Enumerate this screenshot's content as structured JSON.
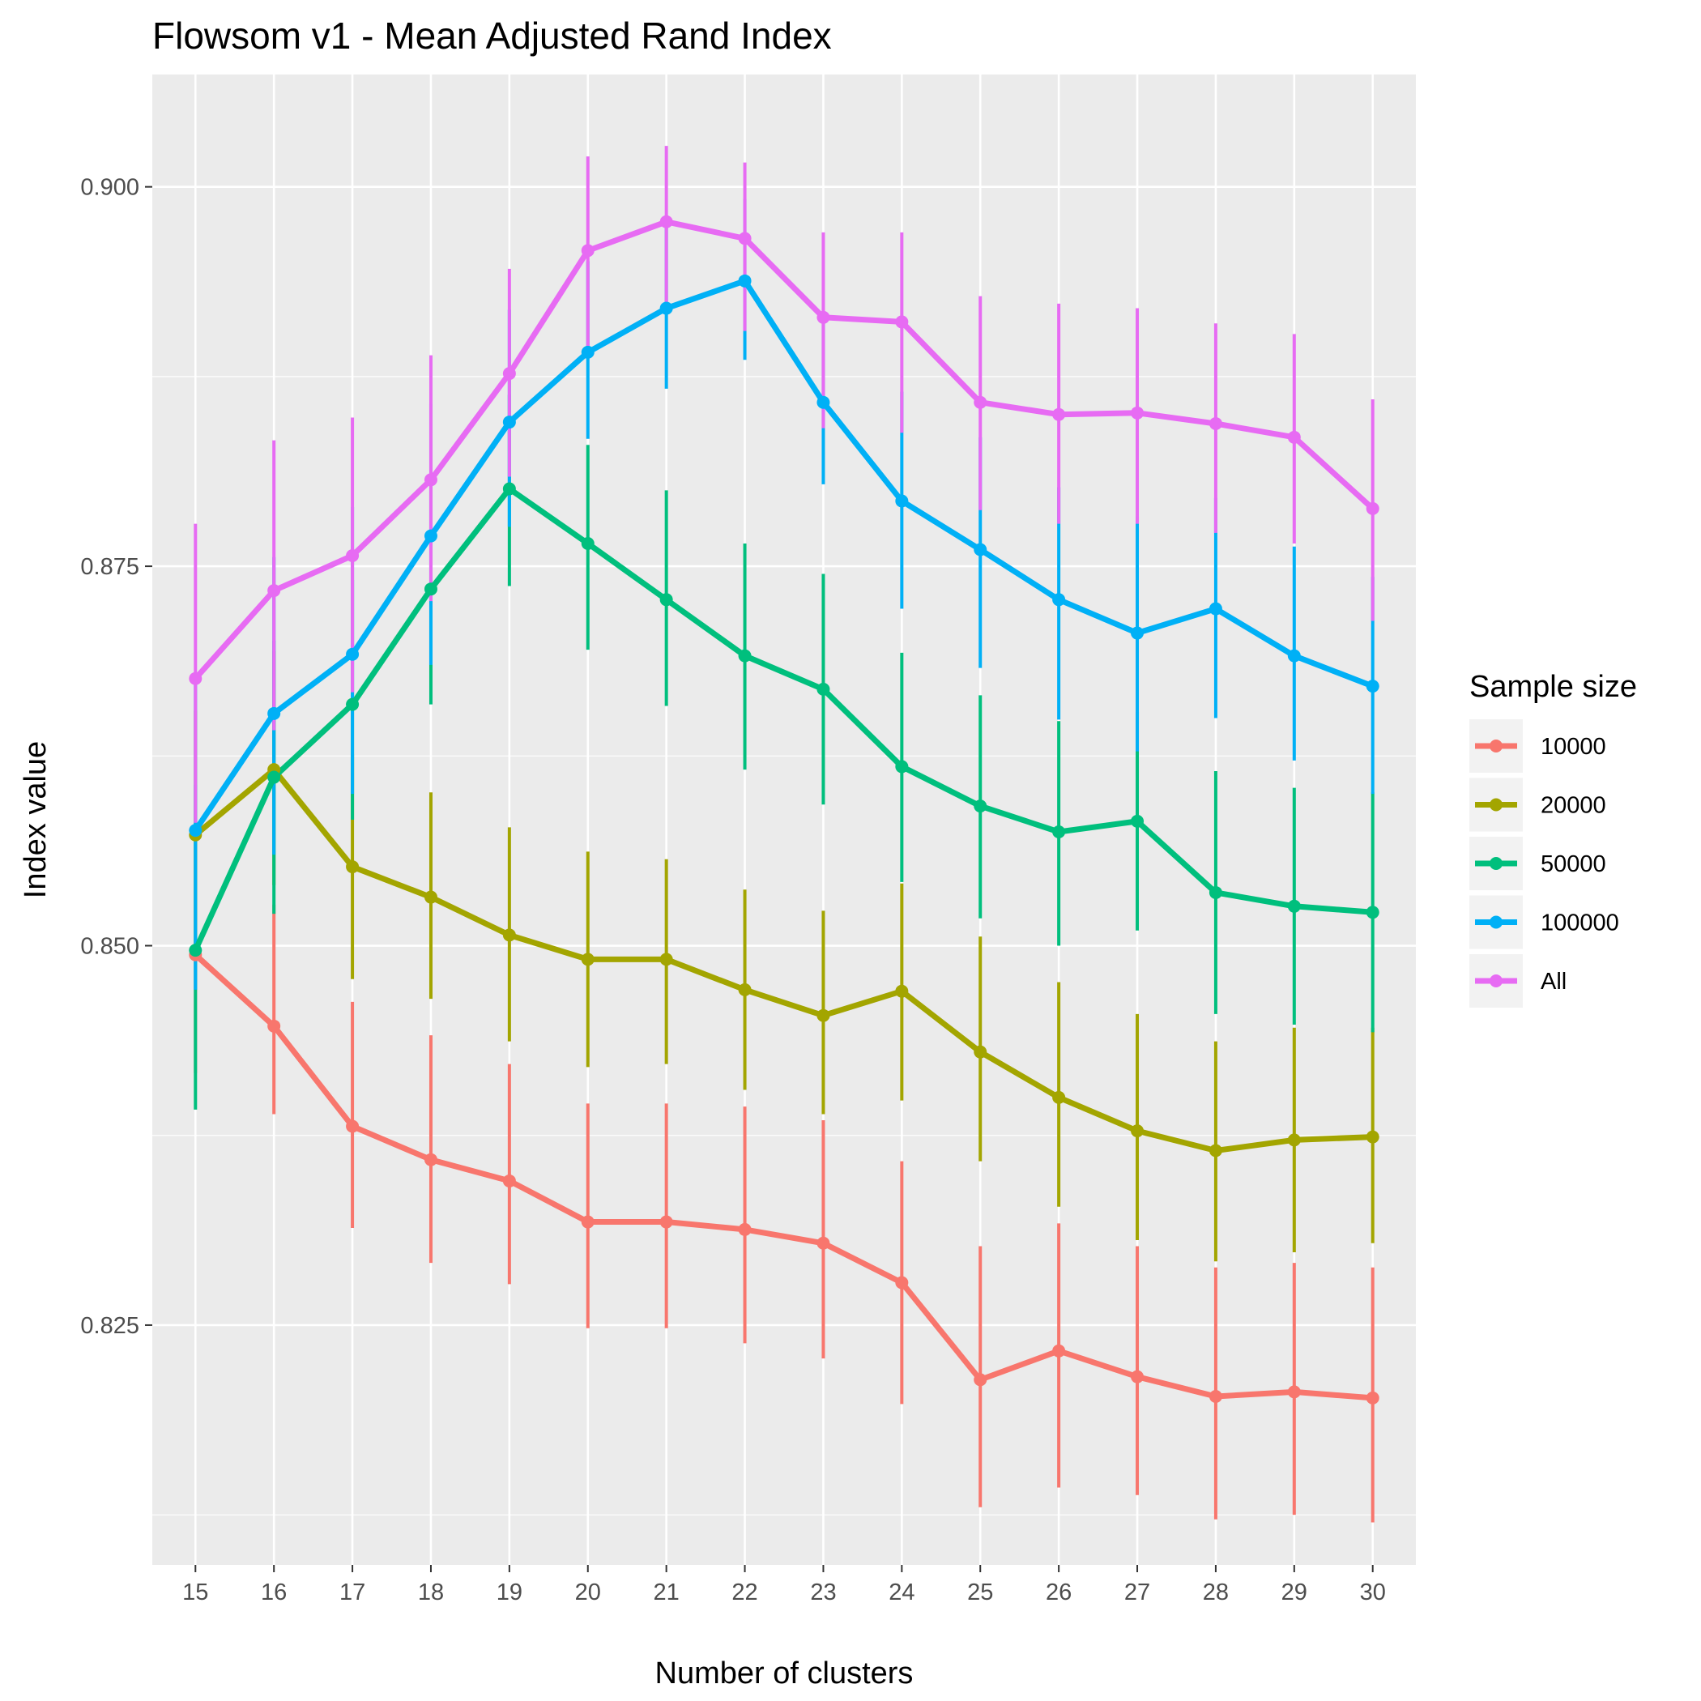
{
  "chart_data": {
    "type": "line",
    "title": "Flowsom v1 - Mean Adjusted Rand Index",
    "xlabel": "Number of clusters",
    "ylabel": "Index value",
    "x": [
      15,
      16,
      17,
      18,
      19,
      20,
      21,
      22,
      23,
      24,
      25,
      26,
      27,
      28,
      29,
      30
    ],
    "xlim": [
      14.45,
      30.55
    ],
    "ylim": [
      0.8092,
      0.9074
    ],
    "y_ticks": [
      "0.825",
      "0.850",
      "0.875",
      "0.900"
    ],
    "grid": true,
    "legend": {
      "title": "Sample size",
      "position": "right"
    },
    "error_bars": true,
    "series": [
      {
        "name": "10000",
        "color": "#F8766D",
        "values": [
          0.8494,
          0.8447,
          0.8381,
          0.8359,
          0.8345,
          0.8318,
          0.8318,
          0.8313,
          0.8304,
          0.8278,
          0.8214,
          0.8233,
          0.8216,
          0.8203,
          0.8206,
          0.8202
        ],
        "lower": [
          0.8416,
          0.8389,
          0.8314,
          0.8291,
          0.8277,
          0.8248,
          0.8248,
          0.8238,
          0.8228,
          0.8198,
          0.813,
          0.8143,
          0.8138,
          0.8122,
          0.8125,
          0.812
        ],
        "upper": [
          0.8572,
          0.8527,
          0.8463,
          0.8441,
          0.8422,
          0.8396,
          0.8396,
          0.8394,
          0.8385,
          0.8358,
          0.8302,
          0.8317,
          0.8302,
          0.8288,
          0.8291,
          0.8288
        ]
      },
      {
        "name": "20000",
        "color": "#A3A500",
        "values": [
          0.8573,
          0.8616,
          0.8552,
          0.8532,
          0.8507,
          0.8491,
          0.8491,
          0.8471,
          0.8454,
          0.847,
          0.843,
          0.84,
          0.8378,
          0.8365,
          0.8372,
          0.8374
        ],
        "lower": [
          0.8493,
          0.854,
          0.8478,
          0.8465,
          0.8437,
          0.842,
          0.8422,
          0.8405,
          0.8389,
          0.8398,
          0.8358,
          0.8328,
          0.8306,
          0.8292,
          0.8298,
          0.8304
        ],
        "upper": [
          0.8655,
          0.8694,
          0.8626,
          0.8601,
          0.8578,
          0.8562,
          0.8557,
          0.8537,
          0.8523,
          0.8541,
          0.8506,
          0.8476,
          0.8455,
          0.8437,
          0.8446,
          0.8446
        ]
      },
      {
        "name": "50000",
        "color": "#00BF7D",
        "values": [
          0.8497,
          0.8611,
          0.8659,
          0.8735,
          0.8801,
          0.8765,
          0.8728,
          0.8691,
          0.8669,
          0.8618,
          0.8592,
          0.8575,
          0.8582,
          0.8535,
          0.8526,
          0.8522
        ],
        "lower": [
          0.8392,
          0.8521,
          0.8583,
          0.8659,
          0.8737,
          0.8695,
          0.8658,
          0.8616,
          0.8593,
          0.8542,
          0.8518,
          0.85,
          0.851,
          0.8455,
          0.8448,
          0.8443
        ],
        "upper": [
          0.8606,
          0.8701,
          0.8741,
          0.8811,
          0.8863,
          0.883,
          0.88,
          0.8765,
          0.8745,
          0.8693,
          0.8665,
          0.8648,
          0.8654,
          0.8615,
          0.8604,
          0.8601
        ]
      },
      {
        "name": "100000",
        "color": "#00B0F6",
        "values": [
          0.8576,
          0.8653,
          0.8692,
          0.877,
          0.8845,
          0.8891,
          0.892,
          0.8938,
          0.8858,
          0.8793,
          0.8761,
          0.8728,
          0.8706,
          0.8722,
          0.8691,
          0.8671
        ],
        "lower": [
          0.8471,
          0.856,
          0.86,
          0.8685,
          0.8776,
          0.8834,
          0.8867,
          0.8886,
          0.8804,
          0.8722,
          0.8683,
          0.8649,
          0.8628,
          0.865,
          0.8622,
          0.86
        ],
        "upper": [
          0.868,
          0.8756,
          0.8789,
          0.8857,
          0.8919,
          0.8951,
          0.8976,
          0.8992,
          0.8911,
          0.8865,
          0.8835,
          0.8802,
          0.8783,
          0.8795,
          0.8763,
          0.8743
        ]
      },
      {
        "name": "All",
        "color": "#E76BF3",
        "values": [
          0.8676,
          0.8734,
          0.8757,
          0.8807,
          0.8877,
          0.8958,
          0.8977,
          0.8966,
          0.8914,
          0.8911,
          0.8858,
          0.885,
          0.8851,
          0.8844,
          0.8835,
          0.8788
        ],
        "lower": [
          0.8581,
          0.8642,
          0.8667,
          0.8727,
          0.8809,
          0.889,
          0.892,
          0.8905,
          0.8841,
          0.8838,
          0.8787,
          0.8778,
          0.8778,
          0.8772,
          0.8765,
          0.8714
        ],
        "upper": [
          0.8778,
          0.8833,
          0.8848,
          0.8889,
          0.8946,
          0.902,
          0.9027,
          0.9016,
          0.897,
          0.897,
          0.8928,
          0.8923,
          0.892,
          0.891,
          0.8903,
          0.886
        ]
      }
    ]
  }
}
